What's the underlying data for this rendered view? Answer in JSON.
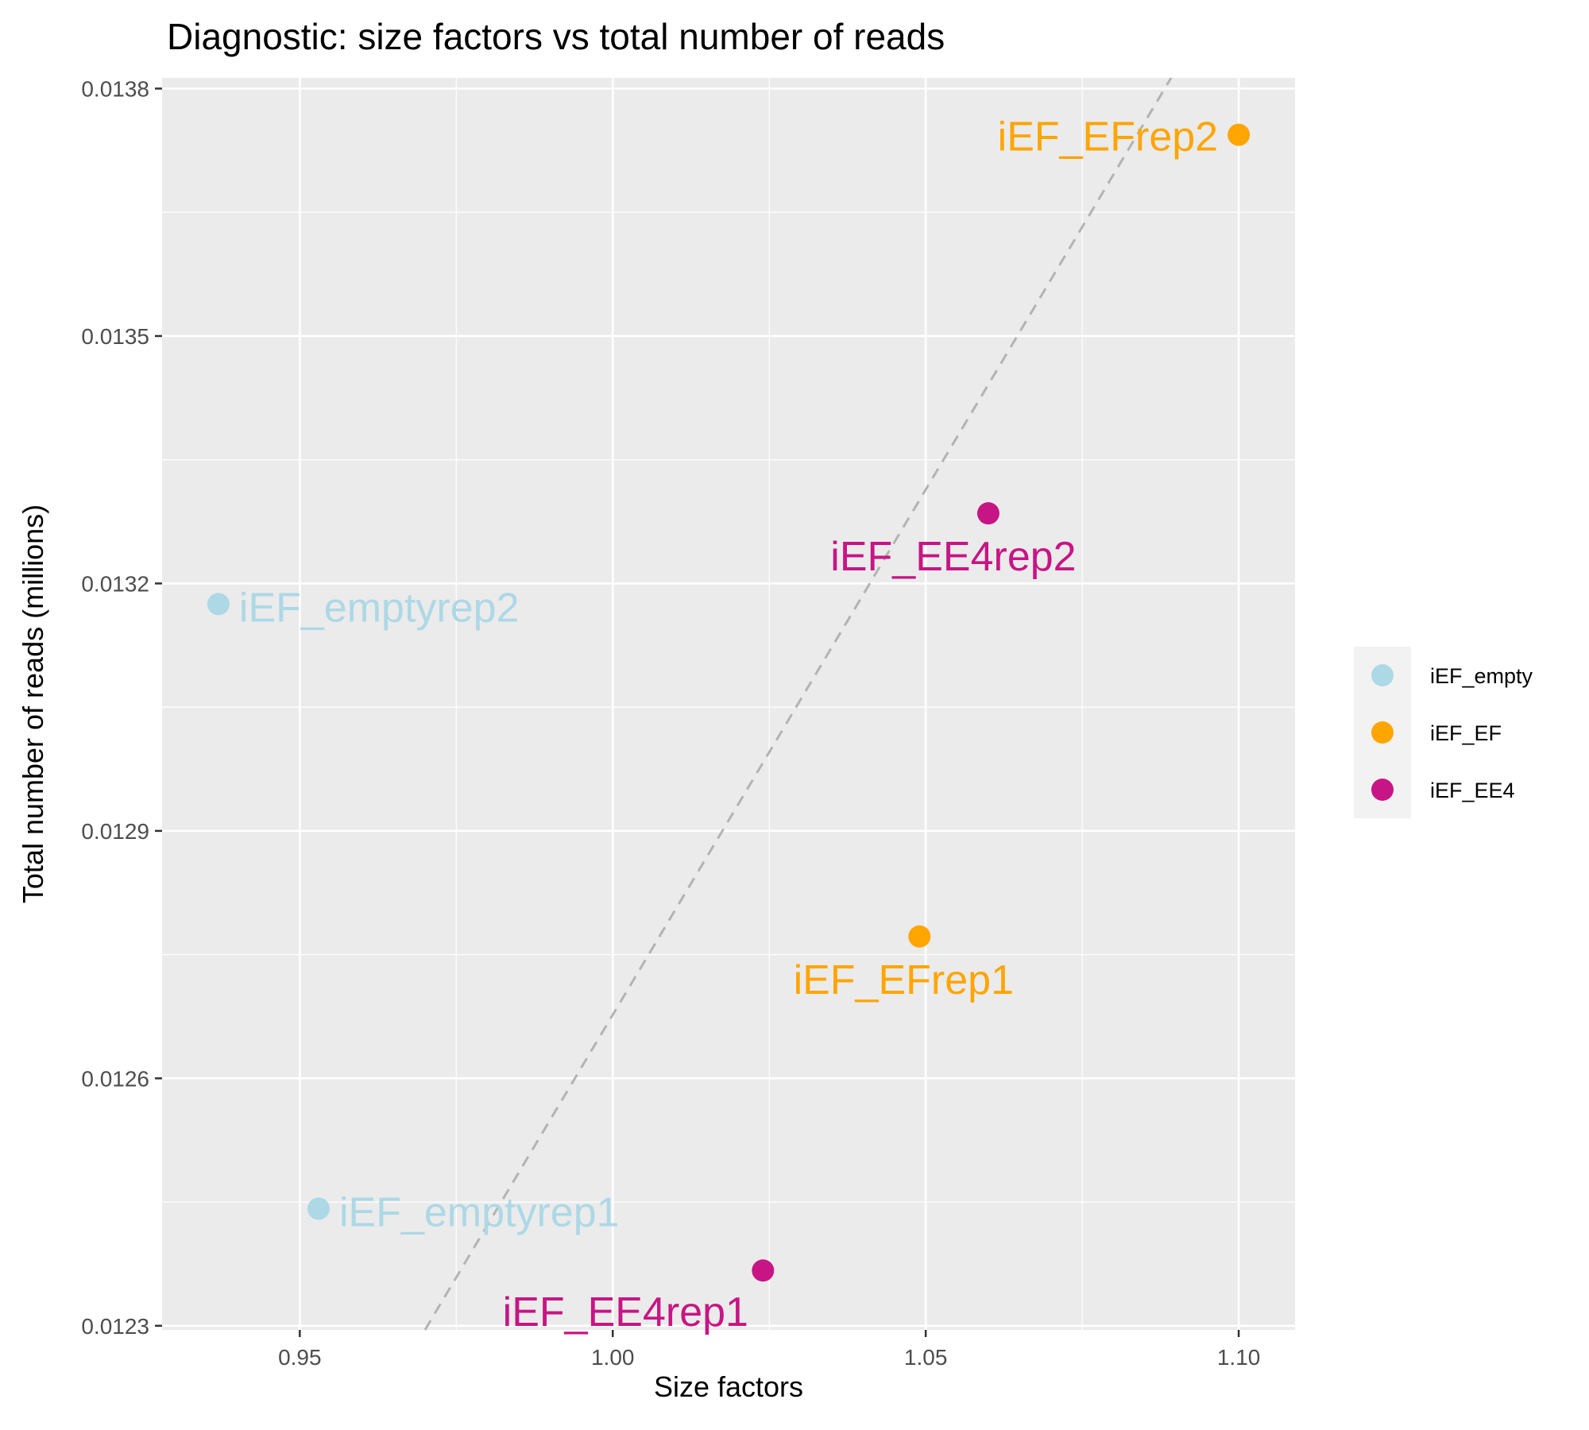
{
  "chart_data": {
    "type": "scatter",
    "title": "Diagnostic: size factors vs total number of reads",
    "xlabel": "Size factors",
    "ylabel": "Total number of reads (millions)",
    "xlim": [
      0.928,
      1.109
    ],
    "ylim": [
      0.012295,
      0.013813
    ],
    "x_ticks": [
      0.95,
      1.0,
      1.05,
      1.1
    ],
    "x_tick_labels": [
      "0.95",
      "1.00",
      "1.05",
      "1.10"
    ],
    "y_ticks": [
      0.0123,
      0.0126,
      0.0129,
      0.0132,
      0.0135,
      0.0138
    ],
    "y_tick_labels": [
      "0.0123",
      "0.0126",
      "0.0129",
      "0.0132",
      "0.0135",
      "0.0138"
    ],
    "grid": true,
    "legend_position": "right",
    "series": [
      {
        "name": "iEF_empty",
        "color": "#ADD8E6",
        "points": [
          {
            "label": "iEF_emptyrep2",
            "x": 0.937,
            "y": 0.013175
          },
          {
            "label": "iEF_emptyrep1",
            "x": 0.953,
            "y": 0.012442
          }
        ]
      },
      {
        "name": "iEF_EF",
        "color": "#FFA500",
        "points": [
          {
            "label": "iEF_EFrep2",
            "x": 1.1,
            "y": 0.013744
          },
          {
            "label": "iEF_EFrep1",
            "x": 1.049,
            "y": 0.012772
          }
        ]
      },
      {
        "name": "iEF_EE4",
        "color": "#C71585",
        "points": [
          {
            "label": "iEF_EE4rep2",
            "x": 1.06,
            "y": 0.013285
          },
          {
            "label": "iEF_EE4rep1",
            "x": 1.024,
            "y": 0.012367
          }
        ]
      }
    ],
    "reference_line": {
      "style": "dashed",
      "color": "#b3b3b3",
      "from": {
        "x": 0.97,
        "y": 0.012295
      },
      "to": {
        "x": 1.0892,
        "y": 0.013813
      }
    }
  }
}
